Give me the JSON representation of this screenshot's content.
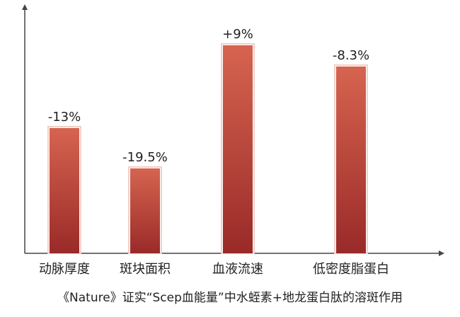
{
  "chart_data": {
    "type": "bar",
    "categories": [
      "动脉厚度",
      "斑块面积",
      "血液流速",
      "低密度脂蛋白"
    ],
    "values": [
      -13,
      -19.5,
      9,
      -8.3
    ],
    "data_labels": [
      "-13%",
      "-19.5%",
      "+9%",
      "-8.3%"
    ],
    "bar_height_scale": [
      0.59,
      0.4,
      0.98,
      0.88
    ],
    "grid": false,
    "legend": "none",
    "colors": {
      "bar_top": "#d66450",
      "bar_bottom": "#9a2a28",
      "bar_outline": "#f3cfc8",
      "axis": "#444444"
    }
  },
  "caption": "《Nature》证实“Scep血能量”中水蛭素+地龙蛋白肽的溶斑作用"
}
